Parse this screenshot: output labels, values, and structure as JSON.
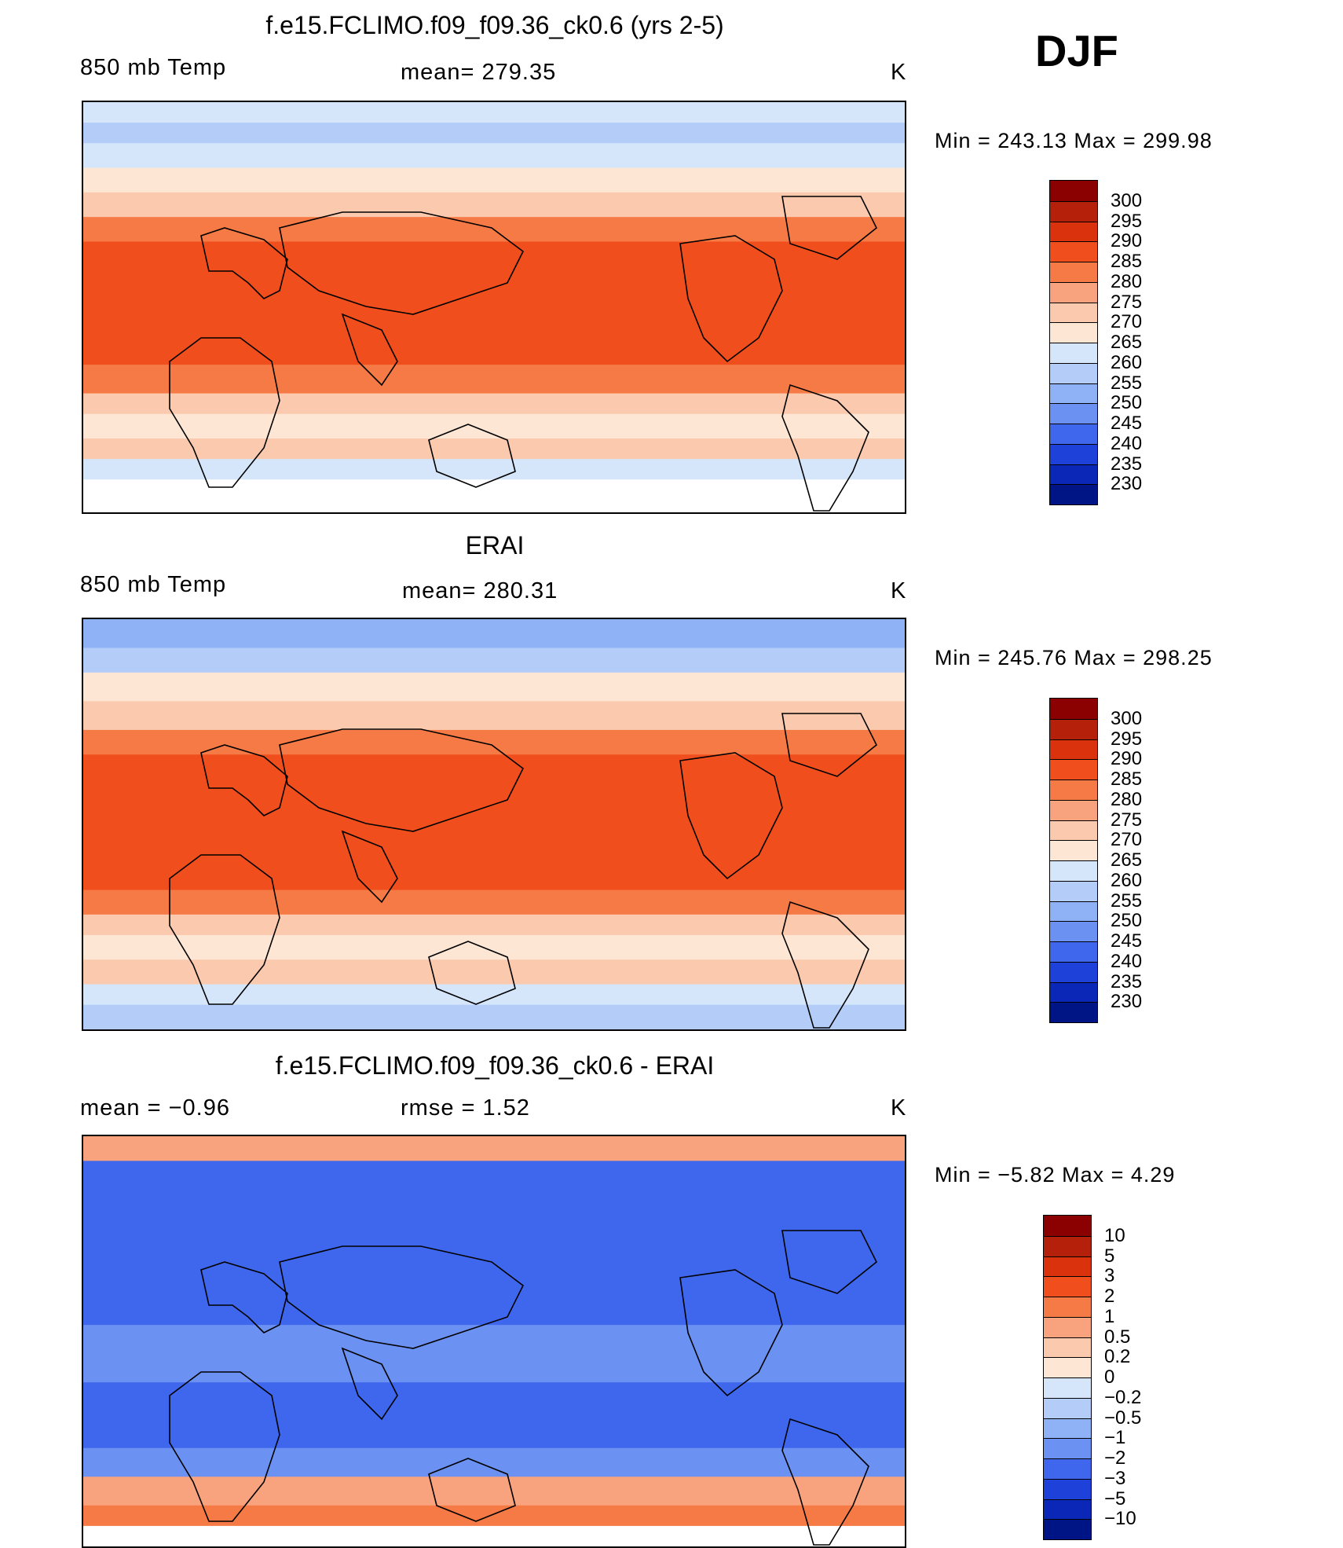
{
  "season": "DJF",
  "panels": [
    {
      "title": "f.e15.FCLIMO.f09_f09.36_ck0.6 (yrs 2-5)",
      "left_label": "850 mb Temp",
      "center_label": "mean= 279.35",
      "units": "K",
      "minmax": "Min = 243.13 Max = 299.98",
      "colorbar_labels": [
        "300",
        "295",
        "290",
        "285",
        "280",
        "275",
        "270",
        "265",
        "260",
        "255",
        "250",
        "245",
        "240",
        "235",
        "230"
      ],
      "colors": [
        "#8b0000",
        "#b5200a",
        "#d9320d",
        "#f04e1c",
        "#f67a45",
        "#f9a37e",
        "#fbc9ad",
        "#fde6d3",
        "#d5e6fb",
        "#b3cdf8",
        "#8fb2f6",
        "#6b92f2",
        "#3f67ed",
        "#1e41d9",
        "#0a27b8",
        "#001585"
      ],
      "bands_map": [
        [
          0.0,
          0.05,
          "#d5e6fb"
        ],
        [
          0.05,
          0.1,
          "#b3cdf8"
        ],
        [
          0.1,
          0.16,
          "#d5e6fb"
        ],
        [
          0.16,
          0.22,
          "#fde6d3"
        ],
        [
          0.22,
          0.28,
          "#fbc9ad"
        ],
        [
          0.28,
          0.34,
          "#f67a45"
        ],
        [
          0.34,
          0.64,
          "#f04e1c"
        ],
        [
          0.64,
          0.71,
          "#f67a45"
        ],
        [
          0.71,
          0.76,
          "#fbc9ad"
        ],
        [
          0.76,
          0.82,
          "#fde6d3"
        ],
        [
          0.82,
          0.87,
          "#fbc9ad"
        ],
        [
          0.87,
          0.92,
          "#d5e6fb"
        ],
        [
          0.92,
          1.0,
          "#ffffff"
        ]
      ]
    },
    {
      "title": "ERAI",
      "left_label": "850 mb Temp",
      "center_label": "mean= 280.31",
      "units": "K",
      "minmax": "Min = 245.76 Max = 298.25",
      "colorbar_labels": [
        "300",
        "295",
        "290",
        "285",
        "280",
        "275",
        "270",
        "265",
        "260",
        "255",
        "250",
        "245",
        "240",
        "235",
        "230"
      ],
      "colors": [
        "#8b0000",
        "#b5200a",
        "#d9320d",
        "#f04e1c",
        "#f67a45",
        "#f9a37e",
        "#fbc9ad",
        "#fde6d3",
        "#d5e6fb",
        "#b3cdf8",
        "#8fb2f6",
        "#6b92f2",
        "#3f67ed",
        "#1e41d9",
        "#0a27b8",
        "#001585"
      ],
      "bands_map": [
        [
          0.0,
          0.07,
          "#8fb2f6"
        ],
        [
          0.07,
          0.13,
          "#b3cdf8"
        ],
        [
          0.13,
          0.2,
          "#fde6d3"
        ],
        [
          0.2,
          0.27,
          "#fbc9ad"
        ],
        [
          0.27,
          0.33,
          "#f67a45"
        ],
        [
          0.33,
          0.66,
          "#f04e1c"
        ],
        [
          0.66,
          0.72,
          "#f67a45"
        ],
        [
          0.72,
          0.77,
          "#fbc9ad"
        ],
        [
          0.77,
          0.83,
          "#fde6d3"
        ],
        [
          0.83,
          0.89,
          "#fbc9ad"
        ],
        [
          0.89,
          0.94,
          "#d5e6fb"
        ],
        [
          0.94,
          1.0,
          "#b3cdf8"
        ]
      ]
    },
    {
      "title": "f.e15.FCLIMO.f09_f09.36_ck0.6 - ERAI",
      "left_label": "mean =   −0.96",
      "center_label": "rmse =    1.52",
      "units": "K",
      "minmax": "Min =   −5.82 Max =    4.29",
      "colorbar_labels": [
        "10",
        "5",
        "3",
        "2",
        "1",
        "0.5",
        "0.2",
        "0",
        "−0.2",
        "−0.5",
        "−1",
        "−2",
        "−3",
        "−5",
        "−10"
      ],
      "colors": [
        "#8b0000",
        "#b5200a",
        "#d9320d",
        "#f04e1c",
        "#f67a45",
        "#f9a37e",
        "#fbc9ad",
        "#fde6d3",
        "#d5e6fb",
        "#b3cdf8",
        "#8fb2f6",
        "#6b92f2",
        "#3f67ed",
        "#1e41d9",
        "#0a27b8",
        "#001585"
      ],
      "bands_map": [
        [
          0.0,
          0.06,
          "#f9a37e"
        ],
        [
          0.06,
          0.18,
          "#3f67ed"
        ],
        [
          0.18,
          0.46,
          "#3f67ed"
        ],
        [
          0.46,
          0.6,
          "#6b92f2"
        ],
        [
          0.6,
          0.76,
          "#3f67ed"
        ],
        [
          0.76,
          0.83,
          "#6b92f2"
        ],
        [
          0.83,
          0.9,
          "#f9a37e"
        ],
        [
          0.9,
          0.95,
          "#f67a45"
        ],
        [
          0.95,
          1.0,
          "#ffffff"
        ]
      ]
    }
  ]
}
